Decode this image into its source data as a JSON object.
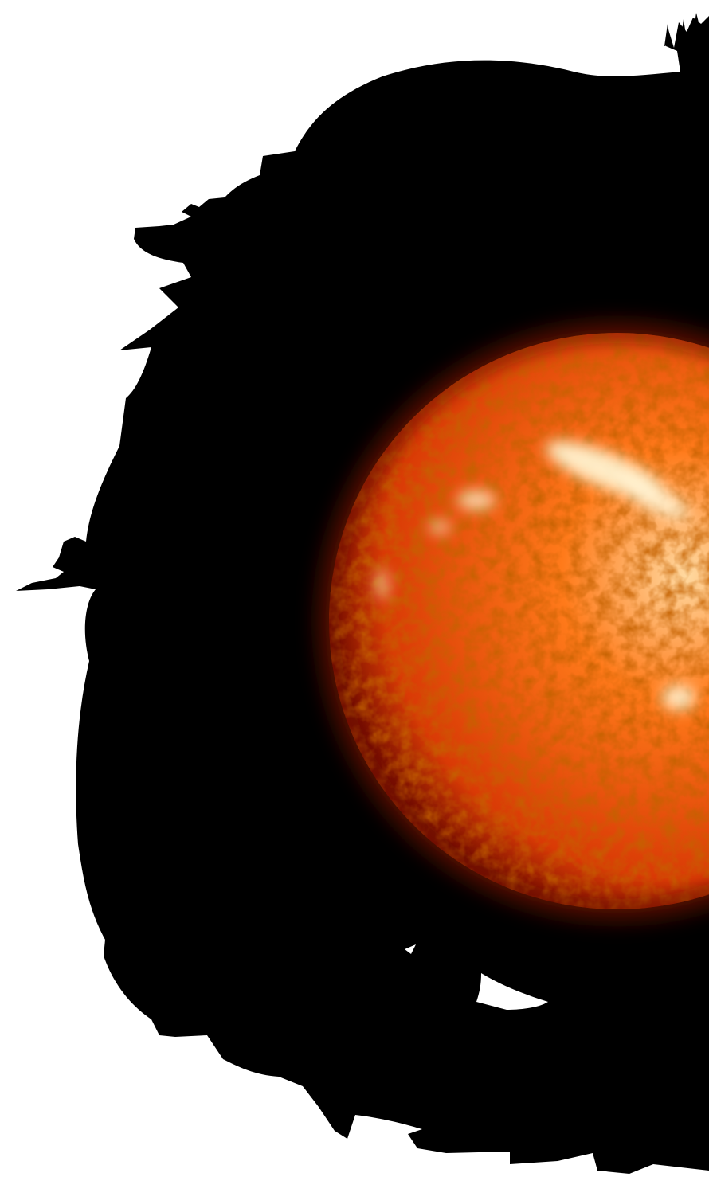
{
  "scene": {
    "background_color": "#ffffff",
    "ink_color": "#000000",
    "subject": "sun-icon",
    "sun_colors": {
      "core": "#ffd9a0",
      "mid": "#ff7a1a",
      "edge": "#d93a05",
      "rim": "#7a1000",
      "glow": "#ff2a00",
      "active_region": "#fff2d0"
    }
  }
}
